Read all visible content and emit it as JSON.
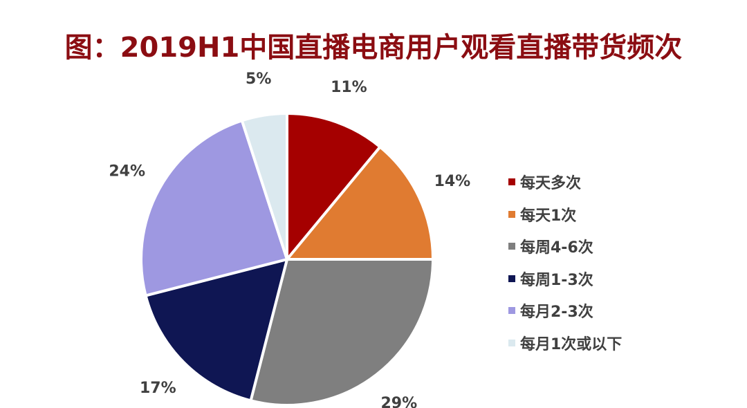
{
  "title": "图：2019H1中国直播电商用户观看直播带货频次",
  "chart_data": {
    "type": "pie",
    "title": "图：2019H1中国直播电商用户观看直播带货频次",
    "start_angle": "12 o'clock",
    "direction": "clockwise",
    "legend_position": "right",
    "slices": [
      {
        "label": "每天多次",
        "value": 11,
        "display": "11%",
        "color": "#a50000"
      },
      {
        "label": "每天1次",
        "value": 14,
        "display": "14%",
        "color": "#e07b31"
      },
      {
        "label": "每周4-6次",
        "value": 29,
        "display": "29%",
        "color": "#7f7f7f"
      },
      {
        "label": "每周1-3次",
        "value": 17,
        "display": "17%",
        "color": "#0f1653"
      },
      {
        "label": "每月2-3次",
        "value": 24,
        "display": "24%",
        "color": "#9e98e1"
      },
      {
        "label": "每月1次或以下",
        "value": 5,
        "display": "5%",
        "color": "#dbe9ef"
      }
    ]
  }
}
